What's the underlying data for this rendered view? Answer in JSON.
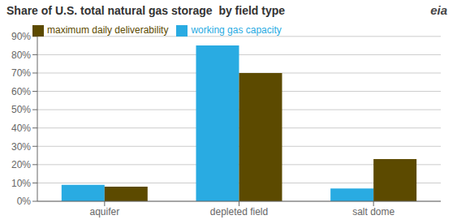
{
  "chart_data": {
    "type": "bar",
    "title": "Share of U.S. total natural gas storage  by field type",
    "annotations": [
      "eia"
    ],
    "categories": [
      "aquifer",
      "depleted field",
      "salt dome"
    ],
    "series": [
      {
        "name": "working gas capacity",
        "values": [
          9,
          85,
          7
        ],
        "color": "#29ABE2"
      },
      {
        "name": "maximum daily deliverability",
        "values": [
          8,
          70,
          23
        ],
        "color": "#5C4A00"
      }
    ],
    "ylim": [
      0,
      90
    ],
    "yticks": [
      {
        "value": 0,
        "label": "0%"
      },
      {
        "value": 10,
        "label": "10%"
      },
      {
        "value": 20,
        "label": "20%"
      },
      {
        "value": 30,
        "label": "30%"
      },
      {
        "value": 40,
        "label": "40%"
      },
      {
        "value": 50,
        "label": "50%"
      },
      {
        "value": 60,
        "label": "60%"
      },
      {
        "value": 70,
        "label": "70%"
      },
      {
        "value": 80,
        "label": "80%"
      },
      {
        "value": 90,
        "label": "90%"
      }
    ],
    "grid": true,
    "legend": "upper left"
  }
}
